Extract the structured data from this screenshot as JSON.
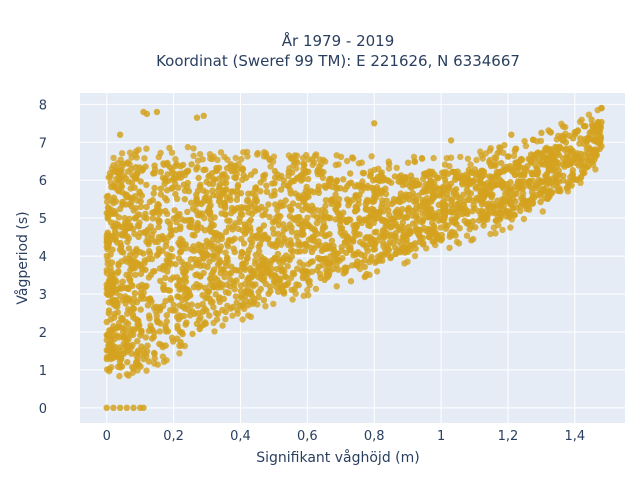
{
  "chart_data": {
    "type": "scatter",
    "title": [
      "År 1979 - 2019",
      "Koordinat (Sweref 99 TM): E 221626, N 6334667"
    ],
    "xlabel": "Signifikant våghöjd (m)",
    "ylabel": "Vågperiod (s)",
    "xlim": [
      -0.08,
      1.55
    ],
    "ylim": [
      -0.4,
      8.3
    ],
    "x_ticks": [
      0,
      0.2,
      0.4,
      0.6,
      0.8,
      1,
      1.2,
      1.4
    ],
    "x_tick_labels": [
      "0",
      "0,2",
      "0,4",
      "0,6",
      "0,8",
      "1",
      "1,2",
      "1,4"
    ],
    "y_ticks": [
      0,
      1,
      2,
      3,
      4,
      5,
      6,
      7,
      8
    ],
    "y_tick_labels": [
      "0",
      "1",
      "2",
      "3",
      "4",
      "5",
      "6",
      "7",
      "8"
    ],
    "grid": true,
    "plot_background": "#e5ecf6",
    "grid_color": "#ffffff",
    "marker_color": "#d4a21f",
    "text_color": "#2a3f5f",
    "envelope": {
      "x": [
        0.0,
        0.02,
        0.05,
        0.1,
        0.15,
        0.2,
        0.3,
        0.4,
        0.5,
        0.6,
        0.7,
        0.8,
        0.9,
        1.0,
        1.1,
        1.2,
        1.3,
        1.35,
        1.4,
        1.45,
        1.48
      ],
      "y_upper": [
        5.5,
        6.2,
        6.3,
        6.4,
        6.4,
        6.5,
        6.4,
        6.3,
        6.3,
        6.3,
        6.2,
        6.2,
        6.2,
        6.2,
        6.3,
        6.5,
        6.8,
        7.0,
        7.3,
        7.5,
        7.6
      ],
      "y_lower": [
        1.2,
        1.1,
        1.05,
        1.1,
        1.3,
        1.6,
        2.2,
        2.6,
        2.9,
        3.2,
        3.5,
        3.8,
        4.1,
        4.4,
        4.7,
        5.0,
        5.4,
        5.6,
        5.9,
        6.4,
        6.8
      ]
    },
    "zero_points": {
      "x": [
        0.0,
        0.02,
        0.04,
        0.06,
        0.08,
        0.1,
        0.11
      ],
      "y": [
        0,
        0,
        0,
        0,
        0,
        0,
        0
      ]
    },
    "outlier_points": {
      "x": [
        0.11,
        0.12,
        0.15,
        0.27,
        0.29,
        0.8,
        1.03,
        1.21,
        1.3,
        1.48,
        1.45,
        0.04,
        0.02,
        0.01
      ],
      "y": [
        7.8,
        7.75,
        7.8,
        7.65,
        7.7,
        7.5,
        7.05,
        7.2,
        7.25,
        7.9,
        7.6,
        7.2,
        5.4,
        1.6
      ]
    }
  }
}
